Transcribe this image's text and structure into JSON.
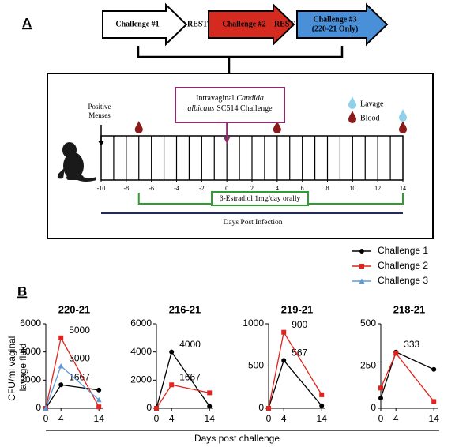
{
  "panel_a": {
    "label": "A",
    "arrows": [
      {
        "lines": [
          "Challenge #1"
        ],
        "color": "#ffffff",
        "text_color": "#000000"
      },
      {
        "lines": [
          "Challenge #2"
        ],
        "color": "#d42a1f",
        "text_color": "#000000"
      },
      {
        "lines": [
          "Challenge #3",
          "(220-21 Only)"
        ],
        "color": "#4a90d9",
        "text_color": "#000000"
      }
    ],
    "rest": [
      "REST",
      "REST"
    ],
    "challenge_box": {
      "plain1": "Intravaginal",
      "italic1": "Candida",
      "italic2": "albicans",
      "plain2": "SC514 Challenge",
      "day": 0
    },
    "legend": [
      {
        "name": "Lavage",
        "color": "#8fd0ea"
      },
      {
        "name": "Blood",
        "color": "#8b1a1a"
      }
    ],
    "menses": {
      "lines": [
        "Positive",
        "Menses"
      ],
      "day": -10
    },
    "xlim": [
      -10,
      14
    ],
    "xticks": [
      -10,
      -8,
      -6,
      -4,
      -2,
      0,
      2,
      4,
      6,
      8,
      10,
      12,
      14
    ],
    "blood_days": [
      -7,
      4,
      14
    ],
    "lavage_days": [
      4,
      14
    ],
    "estradiol": {
      "text": "β-Estradiol 1mg/day orally",
      "days": [
        -7,
        14
      ]
    },
    "axis_label": "Days Post Infection"
  },
  "panel_b_label": "B",
  "y_label": [
    "CFU/ml vaginal",
    "lavage fluid"
  ],
  "x_label": "Days post challenge",
  "chart_data": [
    {
      "type": "line",
      "title": "220-21",
      "x": [
        0,
        4,
        14
      ],
      "xlim": [
        0,
        15
      ],
      "xticks": [
        0,
        4,
        14
      ],
      "ylim": [
        0,
        6000
      ],
      "yticks": [
        0,
        2000,
        4000,
        6000
      ],
      "series": [
        {
          "name": "Challenge 1",
          "color": "#000000",
          "marker": "circle",
          "values": [
            0,
            1667,
            1300
          ],
          "show_labels": [
            false,
            true,
            false
          ]
        },
        {
          "name": "Challenge 2",
          "color": "#e0231c",
          "marker": "square",
          "values": [
            0,
            5000,
            100
          ],
          "show_labels": [
            false,
            true,
            false
          ]
        },
        {
          "name": "Challenge 3",
          "color": "#5b9bd5",
          "marker": "triangle",
          "values": [
            0,
            3000,
            600
          ],
          "show_labels": [
            false,
            true,
            false
          ]
        }
      ]
    },
    {
      "type": "line",
      "title": "216-21",
      "x": [
        0,
        4,
        14
      ],
      "xlim": [
        0,
        15
      ],
      "xticks": [
        0,
        4,
        14
      ],
      "ylim": [
        0,
        6000
      ],
      "yticks": [
        0,
        2000,
        4000,
        6000
      ],
      "series": [
        {
          "name": "Challenge 1",
          "color": "#000000",
          "marker": "circle",
          "values": [
            0,
            4000,
            150
          ],
          "show_labels": [
            false,
            true,
            false
          ]
        },
        {
          "name": "Challenge 2",
          "color": "#e0231c",
          "marker": "square",
          "values": [
            0,
            1667,
            1100
          ],
          "show_labels": [
            false,
            true,
            false
          ]
        }
      ]
    },
    {
      "type": "line",
      "title": "219-21",
      "x": [
        0,
        4,
        14
      ],
      "xlim": [
        0,
        15
      ],
      "xticks": [
        0,
        4,
        14
      ],
      "ylim": [
        0,
        1000
      ],
      "yticks": [
        0,
        500,
        1000
      ],
      "series": [
        {
          "name": "Challenge 1",
          "color": "#000000",
          "marker": "circle",
          "values": [
            0,
            567,
            30
          ],
          "show_labels": [
            false,
            true,
            false
          ]
        },
        {
          "name": "Challenge 2",
          "color": "#e0231c",
          "marker": "square",
          "values": [
            0,
            900,
            160
          ],
          "show_labels": [
            false,
            true,
            false
          ]
        }
      ]
    },
    {
      "type": "line",
      "title": "218-21",
      "x": [
        0,
        4,
        14
      ],
      "xlim": [
        0,
        15
      ],
      "xticks": [
        0,
        4,
        14
      ],
      "ylim": [
        0,
        500
      ],
      "yticks": [
        0,
        250,
        500
      ],
      "series": [
        {
          "name": "Challenge 1",
          "color": "#000000",
          "marker": "circle",
          "values": [
            60,
            333,
            230
          ],
          "show_labels": [
            false,
            true,
            false
          ]
        },
        {
          "name": "Challenge 2",
          "color": "#e0231c",
          "marker": "square",
          "values": [
            120,
            325,
            40
          ],
          "show_labels": [
            false,
            false,
            false
          ]
        }
      ]
    }
  ]
}
